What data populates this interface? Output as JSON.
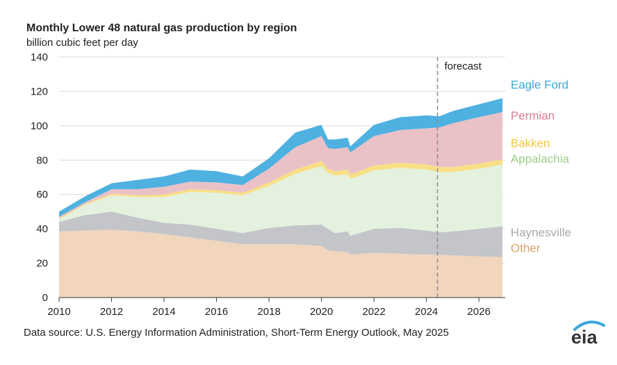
{
  "title": "Monthly Lower 48 natural gas production by region",
  "subtitle": "billion cubic feet per day",
  "source": "Data source: U.S. Energy Information Administration, Short-Term Energy Outlook, May 2025",
  "logo_text": "eia",
  "chart_data": {
    "type": "area",
    "stacked": true,
    "xlim": [
      2010,
      2027
    ],
    "ylim": [
      0,
      140
    ],
    "x_ticks": [
      2010,
      2012,
      2014,
      2016,
      2018,
      2020,
      2022,
      2024,
      2026
    ],
    "y_ticks": [
      0,
      20,
      40,
      60,
      80,
      100,
      120,
      140
    ],
    "grid": true,
    "forecast_start": 2024.42,
    "forecast_label": "forecast",
    "x": [
      2010.0,
      2011.0,
      2012.0,
      2013.0,
      2014.0,
      2015.0,
      2016.0,
      2017.0,
      2018.0,
      2019.0,
      2020.0,
      2020.25,
      2020.5,
      2021.0,
      2021.1,
      2022.0,
      2023.0,
      2024.0,
      2024.5,
      2025.0,
      2026.0,
      2026.9
    ],
    "series": [
      {
        "name": "Other",
        "color": "#f2d5bd",
        "values": [
          38.5,
          39.0,
          39.5,
          38.5,
          37.0,
          35.0,
          33.0,
          31.0,
          31.0,
          31.0,
          30.0,
          27.5,
          27.0,
          26.5,
          25.0,
          26.0,
          25.5,
          25.0,
          25.0,
          24.5,
          24.0,
          23.5
        ]
      },
      {
        "name": "Haynesville",
        "color": "#c3c5c8",
        "values": [
          5.5,
          9.0,
          10.5,
          8.0,
          6.5,
          7.5,
          7.0,
          6.5,
          9.5,
          11.0,
          12.5,
          12.5,
          10.5,
          12.0,
          11.0,
          14.0,
          15.0,
          14.0,
          13.0,
          14.0,
          16.0,
          18.0
        ]
      },
      {
        "name": "Appalachia",
        "color": "#e4f1de",
        "values": [
          1.5,
          6.0,
          9.5,
          12.0,
          15.0,
          19.0,
          21.0,
          22.0,
          24.5,
          30.0,
          34.0,
          32.5,
          33.5,
          33.0,
          33.0,
          34.0,
          35.0,
          35.5,
          35.0,
          34.5,
          35.0,
          36.0
        ]
      },
      {
        "name": "Bakken",
        "color": "#f8df86",
        "values": [
          0.5,
          0.5,
          1.0,
          1.0,
          1.5,
          1.5,
          1.5,
          1.5,
          2.0,
          2.5,
          3.0,
          2.5,
          2.5,
          3.0,
          2.5,
          3.0,
          3.0,
          3.0,
          3.0,
          3.0,
          3.0,
          3.0
        ]
      },
      {
        "name": "Permian",
        "color": "#e9c1c7",
        "values": [
          1.0,
          1.0,
          2.5,
          3.5,
          4.5,
          4.5,
          4.5,
          4.5,
          8.0,
          13.0,
          14.5,
          12.0,
          13.0,
          13.0,
          13.0,
          17.0,
          19.0,
          21.0,
          23.0,
          25.5,
          27.0,
          27.5
        ]
      },
      {
        "name": "Eagle Ford",
        "color": "#4eb1e0",
        "values": [
          3.0,
          3.5,
          3.5,
          5.5,
          6.0,
          7.0,
          6.5,
          5.0,
          6.0,
          8.5,
          6.5,
          5.0,
          5.5,
          5.5,
          3.5,
          6.5,
          7.5,
          7.5,
          6.5,
          7.0,
          7.5,
          8.0
        ]
      }
    ],
    "legend": [
      {
        "label": "Eagle Ford",
        "color": "#3aa7d9",
        "y_value": 124
      },
      {
        "label": "Permian",
        "color": "#d97b8a",
        "y_value": 106
      },
      {
        "label": "Bakken",
        "color": "#f3c73f",
        "y_value": 90
      },
      {
        "label": "Appalachia",
        "color": "#9cce8a",
        "y_value": 81
      },
      {
        "label": "Haynesville",
        "color": "#a7a9ac",
        "y_value": 38
      },
      {
        "label": "Other",
        "color": "#d9a36d",
        "y_value": 29
      }
    ]
  }
}
